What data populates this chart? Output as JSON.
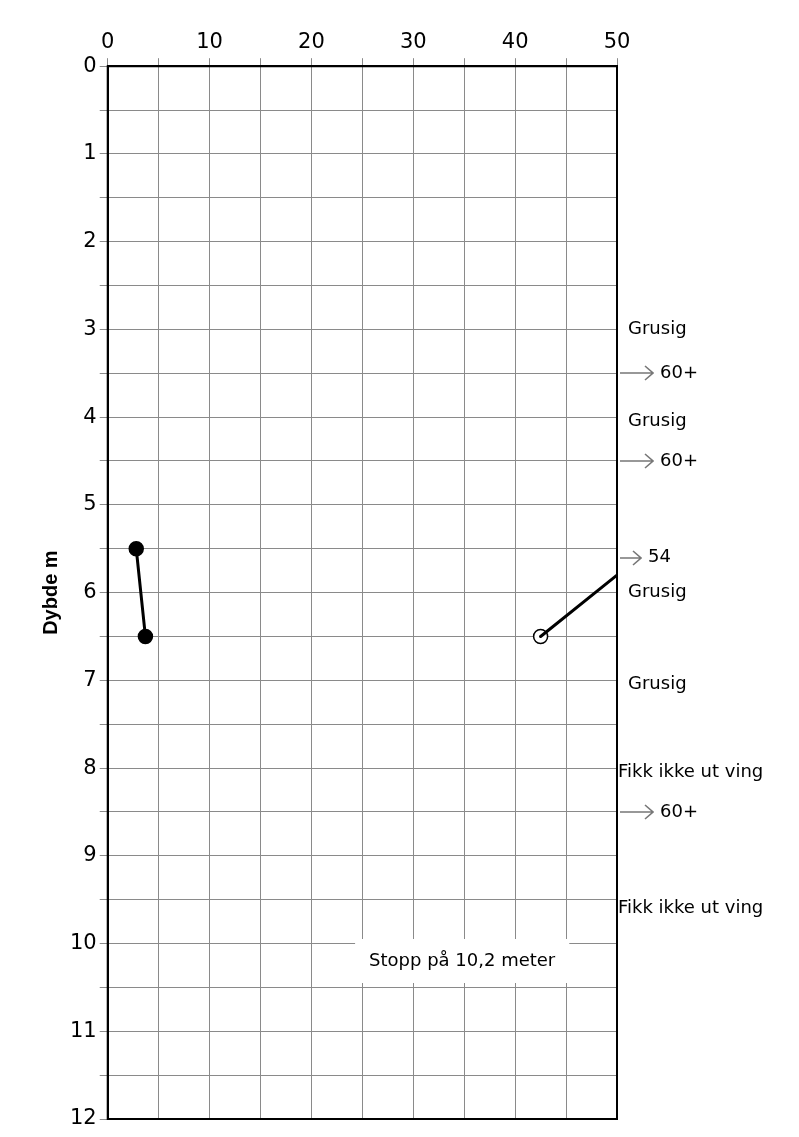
{
  "chart_data": {
    "type": "line",
    "ylabel": "Dybde m",
    "xlim": [
      0,
      50
    ],
    "xticks": [
      0,
      {
        "value": 5,
        "label": null
      },
      10,
      {
        "value": 15,
        "label": null
      },
      20,
      {
        "value": 25,
        "label": null
      },
      30,
      {
        "value": 35,
        "label": null
      },
      40,
      {
        "value": 45,
        "label": null
      },
      50
    ],
    "ylim": [
      12,
      0
    ],
    "yticks": [
      0,
      {
        "value": 0.5,
        "label": null
      },
      1,
      {
        "value": 1.5,
        "label": null
      },
      2,
      {
        "value": 2.5,
        "label": null
      },
      3,
      {
        "value": 3.5,
        "label": null
      },
      4,
      {
        "value": 4.5,
        "label": null
      },
      5,
      {
        "value": 5.5,
        "label": null
      },
      6,
      {
        "value": 6.5,
        "label": null
      },
      7,
      {
        "value": 7.5,
        "label": null
      },
      8,
      {
        "value": 8.5,
        "label": null
      },
      9,
      {
        "value": 9.5,
        "label": null
      },
      10,
      {
        "value": 10.5,
        "label": null
      },
      11,
      {
        "value": 11.5,
        "label": null
      },
      12
    ],
    "grid": true,
    "legend": false,
    "line_style": "solid",
    "series": [
      {
        "color": "#000000",
        "marker": "circle",
        "x": [
          2.8,
          3.7
        ],
        "values": [
          5.5,
          6.5
        ]
      },
      {
        "color": "#000000",
        "marker": "none",
        "x": [
          42.5,
          50
        ],
        "values": [
          6.5,
          5.8
        ]
      },
      {
        "color": "#ffffff",
        "marker": "circle",
        "x": [
          42.5
        ],
        "values": [
          6.5
        ]
      }
    ],
    "annotations": [
      "Grusig",
      "60+",
      "Grusig",
      "60+",
      "54",
      "Grusig",
      "Grusig",
      "Fikk ikke ut ving",
      "60+",
      "Fikk ikke ut ving",
      "Stopp på 10,2 meter"
    ]
  }
}
